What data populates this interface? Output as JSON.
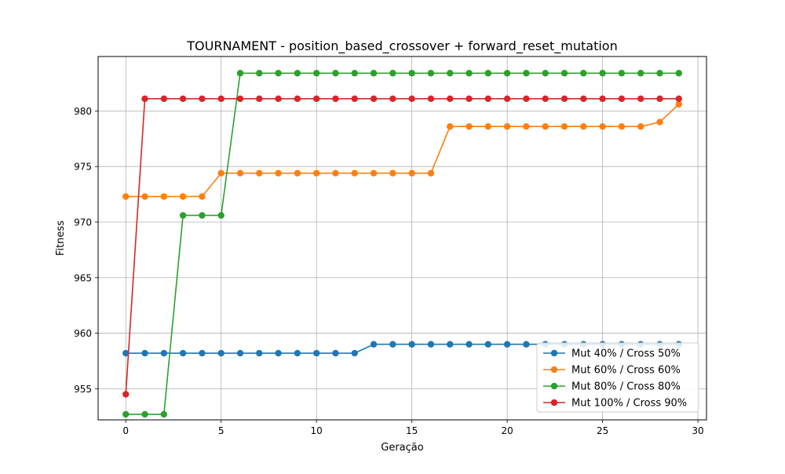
{
  "chart_data": {
    "type": "line",
    "title": "TOURNAMENT - position_based_crossover + forward_reset_mutation",
    "xlabel": "Geração",
    "ylabel": "Fitness",
    "xlim": [
      -1.45,
      30.45
    ],
    "ylim": [
      952.2,
      984.9
    ],
    "xticks": [
      0,
      5,
      10,
      15,
      20,
      25,
      30
    ],
    "yticks": [
      955,
      960,
      965,
      970,
      975,
      980
    ],
    "grid": true,
    "legend_position": "lower-right",
    "x": [
      0,
      1,
      2,
      3,
      4,
      5,
      6,
      7,
      8,
      9,
      10,
      11,
      12,
      13,
      14,
      15,
      16,
      17,
      18,
      19,
      20,
      21,
      22,
      23,
      24,
      25,
      26,
      27,
      28,
      29
    ],
    "series": [
      {
        "name": "Mut 40% / Cross 50%",
        "color": "#1f77b4",
        "values": [
          958.2,
          958.2,
          958.2,
          958.2,
          958.2,
          958.2,
          958.2,
          958.2,
          958.2,
          958.2,
          958.2,
          958.2,
          958.2,
          959.0,
          959.0,
          959.0,
          959.0,
          959.0,
          959.0,
          959.0,
          959.0,
          959.0,
          959.0,
          959.0,
          959.0,
          959.0,
          959.0,
          959.0,
          959.0,
          959.0
        ]
      },
      {
        "name": "Mut 60% / Cross 60%",
        "color": "#ff7f0e",
        "values": [
          972.3,
          972.3,
          972.3,
          972.3,
          972.3,
          974.4,
          974.4,
          974.4,
          974.4,
          974.4,
          974.4,
          974.4,
          974.4,
          974.4,
          974.4,
          974.4,
          974.4,
          978.6,
          978.6,
          978.6,
          978.6,
          978.6,
          978.6,
          978.6,
          978.6,
          978.6,
          978.6,
          978.6,
          979.0,
          980.6
        ]
      },
      {
        "name": "Mut 80% / Cross 80%",
        "color": "#2ca02c",
        "values": [
          952.7,
          952.7,
          952.7,
          970.6,
          970.6,
          970.6,
          983.4,
          983.4,
          983.4,
          983.4,
          983.4,
          983.4,
          983.4,
          983.4,
          983.4,
          983.4,
          983.4,
          983.4,
          983.4,
          983.4,
          983.4,
          983.4,
          983.4,
          983.4,
          983.4,
          983.4,
          983.4,
          983.4,
          983.4,
          983.4
        ]
      },
      {
        "name": "Mut 100% / Cross 90%",
        "color": "#d62728",
        "values": [
          954.5,
          981.1,
          981.1,
          981.1,
          981.1,
          981.1,
          981.1,
          981.1,
          981.1,
          981.1,
          981.1,
          981.1,
          981.1,
          981.1,
          981.1,
          981.1,
          981.1,
          981.1,
          981.1,
          981.1,
          981.1,
          981.1,
          981.1,
          981.1,
          981.1,
          981.1,
          981.1,
          981.1,
          981.1,
          981.1
        ]
      }
    ]
  }
}
